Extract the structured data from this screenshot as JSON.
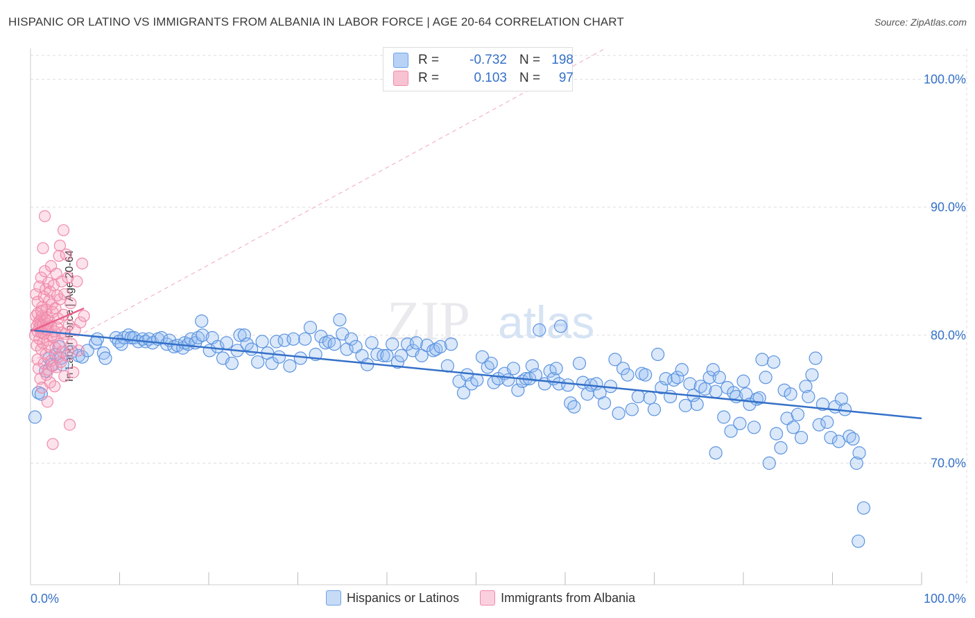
{
  "title": "HISPANIC OR LATINO VS IMMIGRANTS FROM ALBANIA IN LABOR FORCE | AGE 20-64 CORRELATION CHART",
  "source": "Source: ZipAtlas.com",
  "watermark": "ZIPatlas",
  "stats": [
    {
      "r_label": "R =",
      "r_value": "-0.732",
      "n_label": "N =",
      "n_value": "198",
      "color": "#6fa1e8",
      "fill": "#b8d2f5"
    },
    {
      "r_label": "R =",
      "r_value": "0.103",
      "n_label": "N =",
      "n_value": "97",
      "color": "#f08aaa",
      "fill": "#f9c2d3"
    }
  ],
  "legend": [
    {
      "label": "Hispanics or Latinos",
      "color": "#6fa1e8",
      "fill": "#c6dbf6"
    },
    {
      "label": "Immigrants from Albania",
      "color": "#f08aaa",
      "fill": "#fbd0de"
    }
  ],
  "colors": {
    "blue": "#3470c8",
    "pink": "#ea5f8a",
    "grid": "#dddddd",
    "axis_text": "#3470c8"
  },
  "chart_data": {
    "type": "scatter",
    "xlabel": "",
    "ylabel": "In Labor Force | Age 20-64",
    "xlim": [
      0,
      100
    ],
    "ylim": [
      60.5,
      102.4
    ],
    "x_tick_labels": [
      "0.0%",
      "100.0%"
    ],
    "y_ticks": [
      70,
      80,
      90,
      100
    ],
    "y_tick_labels": [
      "70.0%",
      "80.0%",
      "90.0%",
      "100.0%"
    ],
    "grid": true,
    "series": [
      {
        "name": "Hispanics or Latinos",
        "trend": {
          "x": [
            0,
            100
          ],
          "y": [
            80.4,
            73.5
          ]
        },
        "points": [
          [
            0.5,
            73.6
          ],
          [
            0.9,
            75.5
          ],
          [
            1.2,
            75.4
          ],
          [
            1.7,
            77.2
          ],
          [
            2.1,
            78.2
          ],
          [
            2.4,
            77.7
          ],
          [
            2.8,
            78.5
          ],
          [
            3.2,
            79.1
          ],
          [
            3.4,
            78.2
          ],
          [
            3.6,
            77.7
          ],
          [
            4.6,
            78.7
          ],
          [
            5.4,
            78.4
          ],
          [
            5.8,
            78.3
          ],
          [
            6.4,
            78.8
          ],
          [
            7.3,
            79.4
          ],
          [
            7.5,
            79.7
          ],
          [
            8.2,
            78.6
          ],
          [
            8.4,
            78.2
          ],
          [
            9.6,
            79.8
          ],
          [
            9.9,
            79.5
          ],
          [
            10.2,
            79.3
          ],
          [
            10.5,
            79.8
          ],
          [
            11.0,
            80.0
          ],
          [
            11.3,
            79.8
          ],
          [
            11.6,
            79.8
          ],
          [
            12.1,
            79.5
          ],
          [
            12.6,
            79.7
          ],
          [
            12.9,
            79.5
          ],
          [
            13.3,
            79.7
          ],
          [
            13.7,
            79.4
          ],
          [
            14.3,
            79.7
          ],
          [
            14.7,
            79.8
          ],
          [
            15.3,
            79.3
          ],
          [
            15.6,
            79.6
          ],
          [
            16.1,
            79.1
          ],
          [
            16.5,
            79.2
          ],
          [
            17.1,
            79.0
          ],
          [
            17.3,
            79.4
          ],
          [
            17.7,
            79.3
          ],
          [
            18.0,
            79.7
          ],
          [
            18.5,
            79.4
          ],
          [
            18.8,
            79.8
          ],
          [
            19.3,
            80.0
          ],
          [
            19.2,
            81.1
          ],
          [
            20.1,
            78.8
          ],
          [
            20.4,
            79.8
          ],
          [
            21.0,
            79.1
          ],
          [
            21.6,
            78.2
          ],
          [
            22.0,
            79.4
          ],
          [
            22.6,
            77.8
          ],
          [
            23.2,
            78.8
          ],
          [
            23.5,
            80.0
          ],
          [
            24.0,
            80.0
          ],
          [
            24.3,
            79.3
          ],
          [
            24.8,
            78.9
          ],
          [
            25.5,
            77.9
          ],
          [
            26.0,
            79.5
          ],
          [
            26.6,
            78.6
          ],
          [
            27.1,
            77.8
          ],
          [
            27.6,
            79.5
          ],
          [
            27.9,
            78.3
          ],
          [
            28.5,
            79.6
          ],
          [
            29.1,
            77.6
          ],
          [
            29.5,
            79.7
          ],
          [
            30.3,
            78.2
          ],
          [
            30.8,
            79.7
          ],
          [
            31.4,
            80.6
          ],
          [
            32.0,
            78.5
          ],
          [
            32.6,
            79.9
          ],
          [
            33.1,
            79.4
          ],
          [
            33.5,
            79.5
          ],
          [
            34.1,
            79.3
          ],
          [
            34.7,
            81.2
          ],
          [
            35.0,
            80.1
          ],
          [
            35.5,
            78.9
          ],
          [
            36.0,
            79.7
          ],
          [
            36.5,
            79.1
          ],
          [
            37.2,
            78.4
          ],
          [
            37.8,
            77.7
          ],
          [
            38.3,
            79.4
          ],
          [
            38.9,
            78.5
          ],
          [
            39.6,
            78.4
          ],
          [
            40.0,
            78.4
          ],
          [
            40.6,
            79.3
          ],
          [
            41.2,
            77.9
          ],
          [
            41.6,
            78.4
          ],
          [
            42.3,
            79.3
          ],
          [
            42.9,
            78.8
          ],
          [
            43.3,
            79.4
          ],
          [
            43.9,
            78.4
          ],
          [
            44.5,
            79.2
          ],
          [
            45.2,
            78.8
          ],
          [
            45.5,
            78.9
          ],
          [
            46.0,
            79.1
          ],
          [
            46.8,
            77.6
          ],
          [
            47.2,
            79.3
          ],
          [
            48.1,
            76.4
          ],
          [
            48.6,
            75.5
          ],
          [
            49.0,
            76.9
          ],
          [
            49.5,
            76.2
          ],
          [
            50.1,
            76.5
          ],
          [
            50.7,
            78.3
          ],
          [
            51.3,
            77.5
          ],
          [
            51.7,
            77.8
          ],
          [
            52.0,
            76.3
          ],
          [
            52.5,
            76.6
          ],
          [
            53.2,
            77.0
          ],
          [
            53.6,
            76.5
          ],
          [
            54.2,
            77.4
          ],
          [
            54.7,
            75.7
          ],
          [
            55.2,
            76.4
          ],
          [
            55.6,
            76.6
          ],
          [
            56.0,
            76.6
          ],
          [
            56.3,
            77.6
          ],
          [
            56.7,
            76.9
          ],
          [
            57.1,
            80.4
          ],
          [
            57.7,
            76.2
          ],
          [
            58.3,
            77.2
          ],
          [
            58.7,
            76.6
          ],
          [
            59.0,
            77.4
          ],
          [
            59.3,
            76.2
          ],
          [
            59.5,
            80.7
          ],
          [
            60.3,
            76.1
          ],
          [
            60.6,
            74.7
          ],
          [
            61.0,
            74.4
          ],
          [
            61.6,
            77.8
          ],
          [
            62.0,
            76.3
          ],
          [
            62.5,
            75.4
          ],
          [
            62.9,
            76.1
          ],
          [
            63.5,
            76.2
          ],
          [
            63.9,
            75.5
          ],
          [
            64.4,
            74.7
          ],
          [
            65.1,
            76.0
          ],
          [
            65.6,
            78.1
          ],
          [
            66.0,
            73.9
          ],
          [
            66.5,
            77.4
          ],
          [
            67.0,
            76.9
          ],
          [
            67.5,
            74.2
          ],
          [
            68.2,
            75.2
          ],
          [
            68.6,
            77.0
          ],
          [
            69.0,
            76.9
          ],
          [
            69.5,
            75.1
          ],
          [
            70.0,
            74.2
          ],
          [
            70.4,
            78.5
          ],
          [
            70.8,
            75.9
          ],
          [
            71.3,
            76.6
          ],
          [
            71.8,
            75.2
          ],
          [
            72.2,
            76.5
          ],
          [
            72.6,
            76.7
          ],
          [
            73.1,
            77.3
          ],
          [
            73.5,
            74.5
          ],
          [
            74.0,
            76.2
          ],
          [
            74.4,
            75.3
          ],
          [
            74.8,
            74.6
          ],
          [
            75.2,
            76.0
          ],
          [
            75.7,
            75.8
          ],
          [
            76.2,
            76.7
          ],
          [
            76.6,
            77.3
          ],
          [
            76.9,
            75.6
          ],
          [
            76.9,
            70.8
          ],
          [
            77.3,
            76.7
          ],
          [
            77.8,
            73.6
          ],
          [
            78.2,
            75.9
          ],
          [
            78.6,
            72.5
          ],
          [
            78.9,
            75.5
          ],
          [
            79.2,
            75.2
          ],
          [
            79.6,
            73.1
          ],
          [
            80.0,
            76.4
          ],
          [
            80.3,
            75.4
          ],
          [
            80.7,
            74.6
          ],
          [
            81.2,
            72.8
          ],
          [
            81.5,
            75.0
          ],
          [
            81.8,
            75.1
          ],
          [
            82.1,
            78.1
          ],
          [
            82.5,
            76.7
          ],
          [
            82.9,
            70.0
          ],
          [
            83.4,
            77.9
          ],
          [
            83.7,
            72.3
          ],
          [
            84.2,
            71.2
          ],
          [
            84.6,
            75.7
          ],
          [
            84.9,
            73.5
          ],
          [
            85.3,
            75.4
          ],
          [
            85.6,
            72.8
          ],
          [
            86.1,
            73.8
          ],
          [
            86.5,
            72.0
          ],
          [
            87.0,
            76.0
          ],
          [
            87.3,
            75.2
          ],
          [
            87.7,
            76.9
          ],
          [
            88.1,
            78.2
          ],
          [
            88.5,
            73.0
          ],
          [
            88.9,
            74.6
          ],
          [
            89.4,
            73.2
          ],
          [
            89.8,
            72.0
          ],
          [
            90.3,
            74.4
          ],
          [
            90.7,
            71.7
          ],
          [
            91.0,
            75.0
          ],
          [
            91.4,
            74.2
          ],
          [
            91.9,
            72.1
          ],
          [
            92.3,
            71.9
          ],
          [
            92.7,
            70.0
          ],
          [
            93.0,
            70.8
          ],
          [
            93.5,
            66.5
          ],
          [
            92.9,
            63.9
          ]
        ]
      },
      {
        "name": "Immigrants from Albania",
        "trend": {
          "x": [
            0,
            6.0
          ],
          "y": [
            80.3,
            82.1
          ]
        },
        "points": [
          [
            0.5,
            80.0
          ],
          [
            0.6,
            81.5
          ],
          [
            0.6,
            83.2
          ],
          [
            0.7,
            79.2
          ],
          [
            0.7,
            80.7
          ],
          [
            0.8,
            78.1
          ],
          [
            0.8,
            80.3
          ],
          [
            0.8,
            82.6
          ],
          [
            0.9,
            81.0
          ],
          [
            0.9,
            77.4
          ],
          [
            1.0,
            83.8
          ],
          [
            1.0,
            80.6
          ],
          [
            1.0,
            79.7
          ],
          [
            1.1,
            81.2
          ],
          [
            1.1,
            76.6
          ],
          [
            1.1,
            80.9
          ],
          [
            1.2,
            84.5
          ],
          [
            1.2,
            78.9
          ],
          [
            1.2,
            80.2
          ],
          [
            1.3,
            82.2
          ],
          [
            1.3,
            75.9
          ],
          [
            1.3,
            81.5
          ],
          [
            1.4,
            80.8
          ],
          [
            1.4,
            86.8
          ],
          [
            1.4,
            79.4
          ],
          [
            1.5,
            83.0
          ],
          [
            1.5,
            80.1
          ],
          [
            1.5,
            77.8
          ],
          [
            1.6,
            85.0
          ],
          [
            1.6,
            81.3
          ],
          [
            1.6,
            89.3
          ],
          [
            1.7,
            80.5
          ],
          [
            1.7,
            78.5
          ],
          [
            1.7,
            83.6
          ],
          [
            1.8,
            80.9
          ],
          [
            1.8,
            76.9
          ],
          [
            1.8,
            82.0
          ],
          [
            1.9,
            81.4
          ],
          [
            1.9,
            74.8
          ],
          [
            1.9,
            79.6
          ],
          [
            2.0,
            80.4
          ],
          [
            2.0,
            84.1
          ],
          [
            2.0,
            77.3
          ],
          [
            2.1,
            82.7
          ],
          [
            2.1,
            79.1
          ],
          [
            2.1,
            81.1
          ],
          [
            2.2,
            83.4
          ],
          [
            2.2,
            76.3
          ],
          [
            2.3,
            80.7
          ],
          [
            2.3,
            85.4
          ],
          [
            2.3,
            78.0
          ],
          [
            2.4,
            82.4
          ],
          [
            2.4,
            80.0
          ],
          [
            2.5,
            71.5
          ],
          [
            2.5,
            77.6
          ],
          [
            2.5,
            81.8
          ],
          [
            2.6,
            83.9
          ],
          [
            2.6,
            79.8
          ],
          [
            2.7,
            80.3
          ],
          [
            2.7,
            76.0
          ],
          [
            2.8,
            82.1
          ],
          [
            2.8,
            79.0
          ],
          [
            2.9,
            84.8
          ],
          [
            2.9,
            77.5
          ],
          [
            3.0,
            80.6
          ],
          [
            3.0,
            83.1
          ],
          [
            3.1,
            78.3
          ],
          [
            3.1,
            81.3
          ],
          [
            3.2,
            86.2
          ],
          [
            3.2,
            79.3
          ],
          [
            3.3,
            87.0
          ],
          [
            3.3,
            82.8
          ],
          [
            3.4,
            77.9
          ],
          [
            3.5,
            80.2
          ],
          [
            3.5,
            84.2
          ],
          [
            3.6,
            78.7
          ],
          [
            3.7,
            88.2
          ],
          [
            3.7,
            81.6
          ],
          [
            3.8,
            76.8
          ],
          [
            3.8,
            83.2
          ],
          [
            3.9,
            80.1
          ],
          [
            4.0,
            86.3
          ],
          [
            4.1,
            78.4
          ],
          [
            4.2,
            84.5
          ],
          [
            4.3,
            80.8
          ],
          [
            4.4,
            73.0
          ],
          [
            4.5,
            82.5
          ],
          [
            4.6,
            79.3
          ],
          [
            4.8,
            77.1
          ],
          [
            5.0,
            80.4
          ],
          [
            5.2,
            84.2
          ],
          [
            5.4,
            78.8
          ],
          [
            5.6,
            81.0
          ],
          [
            5.8,
            85.6
          ],
          [
            6.0,
            81.5
          ],
          [
            0.8,
            81.7
          ],
          [
            1.2,
            81.9
          ]
        ]
      }
    ],
    "reference_line": {
      "style": "dashed",
      "x": [
        0,
        64.5
      ],
      "y": [
        77.9,
        102.4
      ]
    }
  }
}
